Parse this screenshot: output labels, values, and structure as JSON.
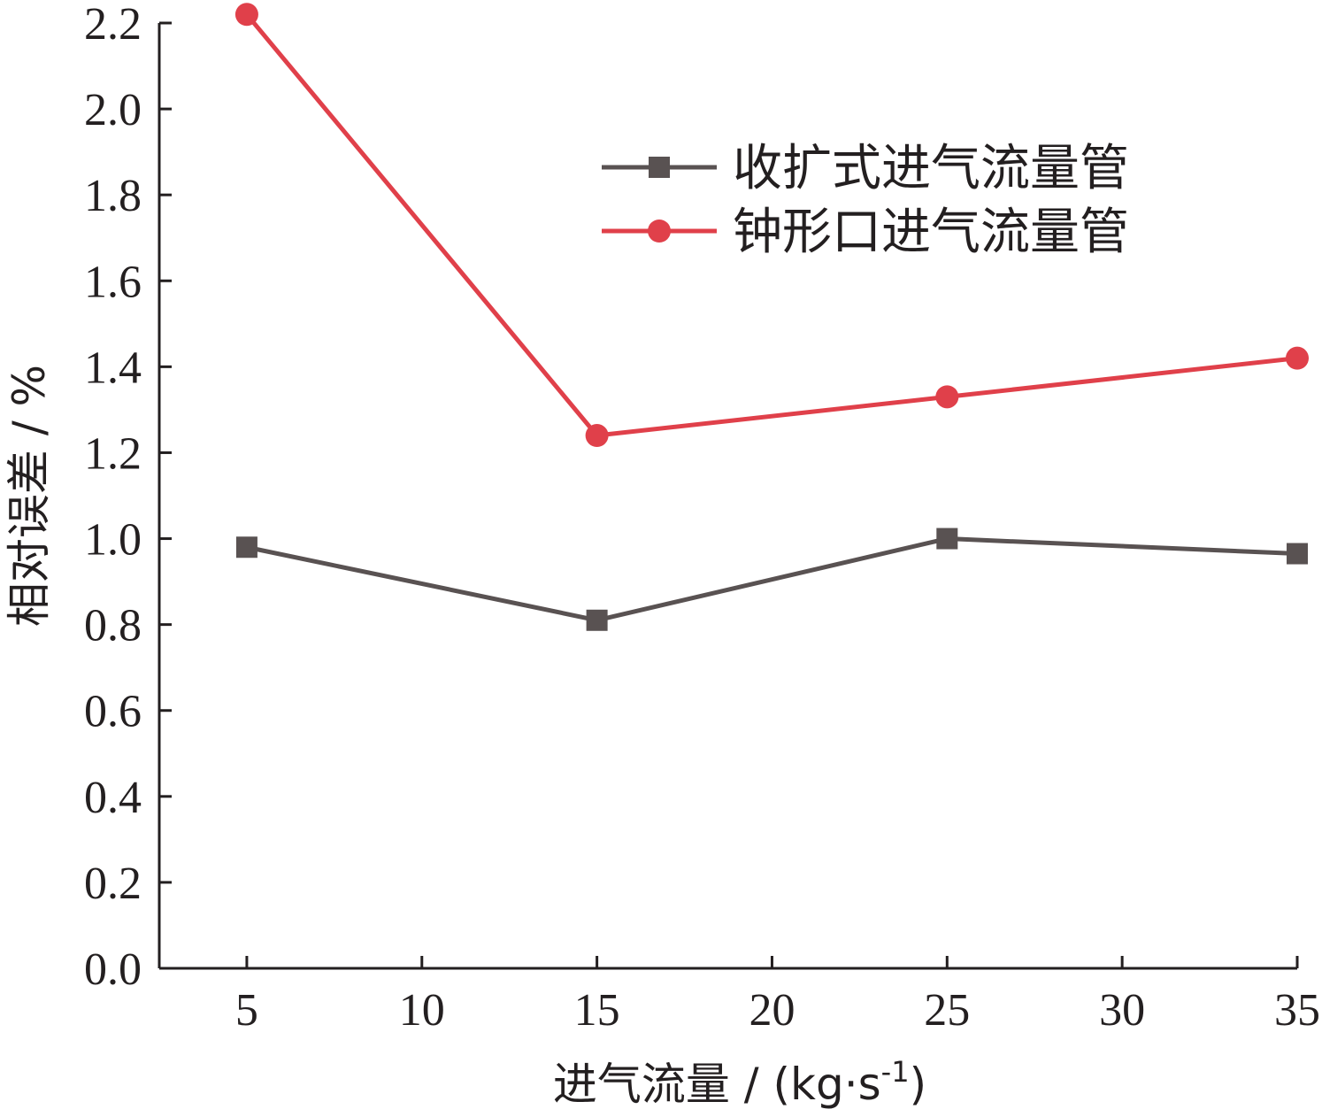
{
  "chart_data": {
    "type": "line",
    "title": "",
    "xlabel": "进气流量 / (kg·s",
    "xlabel_sup": "-1",
    "xlabel_close": ")",
    "ylabel": "相对误差 / %",
    "x": [
      5,
      15,
      25,
      35
    ],
    "xlim": [
      2.5,
      35
    ],
    "ylim": [
      0,
      2.2
    ],
    "xticks": [
      5,
      10,
      15,
      20,
      25,
      30,
      35
    ],
    "xtick_labels": [
      "5",
      "10",
      "15",
      "20",
      "25",
      "30",
      "35"
    ],
    "yticks": [
      0,
      0.2,
      0.4,
      0.6,
      0.8,
      1.0,
      1.2,
      1.4,
      1.6,
      1.8,
      2.0,
      2.2
    ],
    "ytick_labels": [
      "0.0",
      "0.2",
      "0.4",
      "0.6",
      "0.8",
      "1.0",
      "1.2",
      "1.4",
      "1.6",
      "1.8",
      "2.0",
      "2.2"
    ],
    "grid": false,
    "legend_position": "top-right",
    "series": [
      {
        "name": "收扩式进气流量管",
        "values": [
          0.98,
          0.81,
          1.0,
          0.965
        ],
        "color": "#595252",
        "marker": "square"
      },
      {
        "name": "钟形口进气流量管",
        "values": [
          2.22,
          1.24,
          1.33,
          1.42
        ],
        "color": "#e0404a",
        "marker": "circle"
      }
    ]
  }
}
